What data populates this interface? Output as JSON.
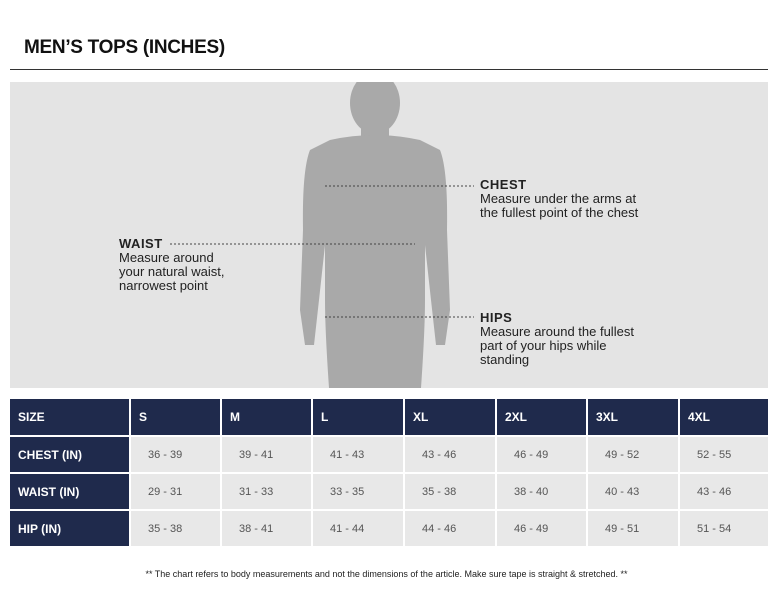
{
  "header": {
    "title": "MEN’S TOPS (INCHES)"
  },
  "annotations": [
    {
      "title": "CHEST",
      "lines": [
        "Measure under the arms at",
        "the fullest point of the chest"
      ]
    },
    {
      "title": "WAIST",
      "lines": [
        "Measure around",
        "your natural waist,",
        "narrowest point"
      ]
    },
    {
      "title": "HIPS",
      "lines": [
        "Measure around the fullest",
        "part of your hips while",
        "standing"
      ]
    }
  ],
  "table": {
    "columns": [
      "SIZE",
      "S",
      "M",
      "L",
      "XL",
      "2XL",
      "3XL",
      "4XL"
    ],
    "rows": [
      [
        "CHEST (IN)",
        "36 - 39",
        "39 - 41",
        "41 - 43",
        "43 - 46",
        "46 - 49",
        "49 - 52",
        "52 - 55"
      ],
      [
        "WAIST (IN)",
        "29 - 31",
        "31 - 33",
        "33 - 35",
        "35 - 38",
        "38 - 40",
        "40 - 43",
        "43 - 46"
      ],
      [
        "HIP (IN)",
        "35 - 38",
        "38 - 41",
        "41 - 44",
        "44 - 46",
        "46 - 49",
        "49 - 51",
        "51 - 54"
      ]
    ]
  },
  "footnote": "** The chart refers to body measurements and not the dimensions of the article. Make sure tape is straight & stretched. **"
}
